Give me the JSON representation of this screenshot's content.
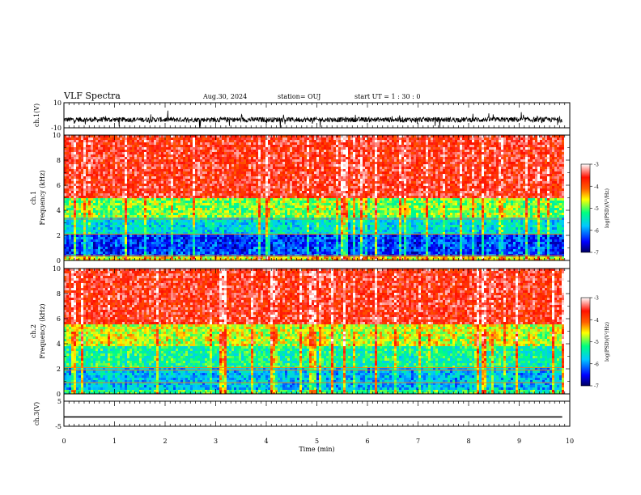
{
  "header": {
    "title": "VLF Spectra",
    "date": "Aug.30, 2024",
    "station": "station= OUJ",
    "start_ut": "start  UT =   1 : 30 : 0"
  },
  "chart_data": [
    {
      "type": "line",
      "name": "ch1-waveform",
      "ylabel": "ch.1(V)",
      "ylim": [
        -10,
        10
      ],
      "yticks": [
        "10",
        "-10"
      ],
      "x_range_min": [
        0,
        9.85
      ],
      "baseline_v": -3.5,
      "noise_amplitude_v": "~±2 with spikes to about ±6",
      "color": "#000000"
    },
    {
      "type": "heatmap",
      "name": "ch1-spectrogram",
      "ylabel": "ch.1\nFrequency  (kHz)",
      "xlim": [
        0,
        10
      ],
      "ylim": [
        0,
        10
      ],
      "yticks": [
        "0",
        "2",
        "4",
        "6",
        "8",
        "10"
      ],
      "data_x_end": 9.85,
      "colorbar": {
        "label": "log(PSD)(V²/Hz)",
        "range": [
          -7,
          -3
        ],
        "ticks": [
          "-3",
          "-4",
          "-5",
          "-6",
          "-7"
        ],
        "colormap": [
          "#000060",
          "#0000ff",
          "#00c8ff",
          "#00ff80",
          "#ffff00",
          "#ff6000",
          "#ff1000",
          "#ffffff"
        ]
      },
      "profile": [
        {
          "f_khz_from": 0.0,
          "f_khz_to": 0.4,
          "log_psd": -4.5
        },
        {
          "f_khz_from": 0.4,
          "f_khz_to": 2.0,
          "log_psd": -6.3
        },
        {
          "f_khz_from": 2.0,
          "f_khz_to": 3.5,
          "log_psd": -5.6
        },
        {
          "f_khz_from": 3.5,
          "f_khz_to": 5.0,
          "log_psd": -4.9
        },
        {
          "f_khz_from": 5.0,
          "f_khz_to": 10.0,
          "log_psd": -3.6
        }
      ],
      "lines_khz": [
        0.4,
        2.1,
        3.3
      ]
    },
    {
      "type": "heatmap",
      "name": "ch2-spectrogram",
      "ylabel": "ch.2\nFrequency  (kHz)",
      "xlim": [
        0,
        10
      ],
      "ylim": [
        0,
        10
      ],
      "yticks": [
        "0",
        "2",
        "4",
        "6",
        "8",
        "10"
      ],
      "data_x_end": 9.85,
      "colorbar": {
        "label": "log(PSD)(V²/Hz)",
        "range": [
          -7,
          -3
        ],
        "ticks": [
          "-3",
          "-4",
          "-5",
          "-6",
          "-7"
        ],
        "colormap": [
          "#000060",
          "#0000ff",
          "#00c8ff",
          "#00ff80",
          "#ffff00",
          "#ff6000",
          "#ff1000",
          "#ffffff"
        ]
      },
      "profile": [
        {
          "f_khz_from": 0.0,
          "f_khz_to": 0.4,
          "log_psd": -5.2
        },
        {
          "f_khz_from": 0.4,
          "f_khz_to": 2.0,
          "log_psd": -5.8
        },
        {
          "f_khz_from": 2.0,
          "f_khz_to": 3.8,
          "log_psd": -5.3
        },
        {
          "f_khz_from": 3.8,
          "f_khz_to": 5.5,
          "log_psd": -4.7
        },
        {
          "f_khz_from": 5.5,
          "f_khz_to": 10.0,
          "log_psd": -3.6
        }
      ],
      "lines_khz": [
        0.9,
        1.9,
        2.1
      ]
    },
    {
      "type": "line",
      "name": "ch3-waveform",
      "ylabel": "ch.3(V)",
      "ylim": [
        -5,
        5
      ],
      "yticks": [
        "5",
        "-5"
      ],
      "x_range_min": [
        0,
        9.85
      ],
      "constant_v": -1.3,
      "color": "#000000"
    }
  ],
  "xaxis": {
    "label": "Time  (min)",
    "ticks": [
      "0",
      "1",
      "2",
      "3",
      "4",
      "5",
      "6",
      "7",
      "8",
      "9",
      "10"
    ],
    "range": [
      0,
      10
    ]
  }
}
